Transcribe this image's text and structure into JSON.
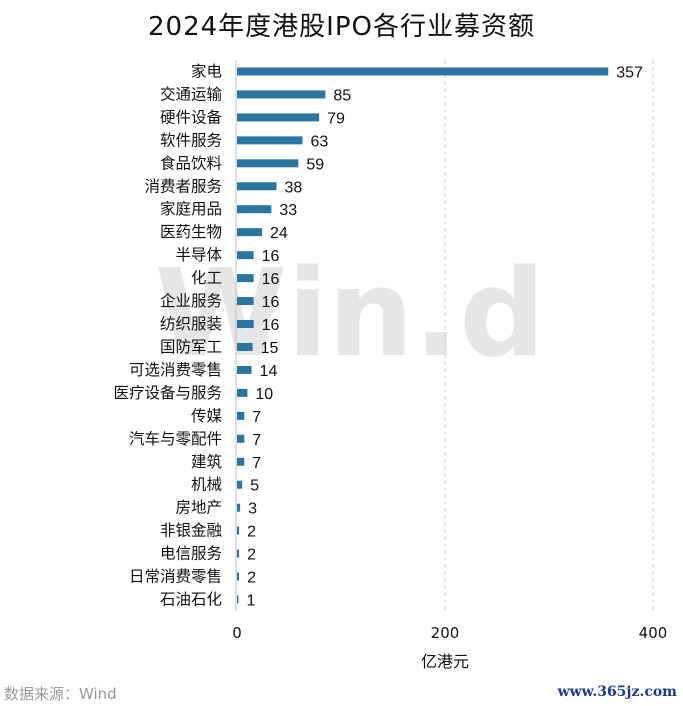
{
  "chart_data": {
    "type": "bar",
    "orientation": "horizontal",
    "title": "2024年度港股IPO各行业募资额",
    "xlabel": "亿港元",
    "ylabel": "",
    "xlim": [
      0,
      400
    ],
    "x_ticks": [
      0,
      200,
      400
    ],
    "grid": "vertical dashed",
    "categories": [
      "家电",
      "交通运输",
      "硬件设备",
      "软件服务",
      "食品饮料",
      "消费者服务",
      "家庭用品",
      "医药生物",
      "半导体",
      "化工",
      "企业服务",
      "纺织服装",
      "国防军工",
      "可选消费零售",
      "医疗设备与服务",
      "传媒",
      "汽车与零配件",
      "建筑",
      "机械",
      "房地产",
      "非银金融",
      "电信服务",
      "日常消费零售",
      "石油石化"
    ],
    "values": [
      357,
      85,
      79,
      63,
      59,
      38,
      33,
      24,
      16,
      16,
      16,
      16,
      15,
      14,
      10,
      7,
      7,
      7,
      5,
      3,
      2,
      2,
      2,
      1
    ],
    "bar_color": "#2a76a0",
    "watermark": "Win.d"
  },
  "source": "数据来源：Wind",
  "site": "www.365jz.com"
}
